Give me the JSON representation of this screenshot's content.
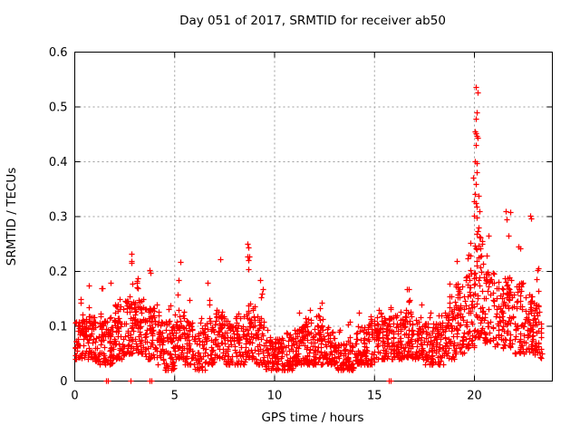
{
  "chart_data": {
    "type": "scatter",
    "title": "Day 051 of 2017, SRMTID for receiver ab50",
    "xlabel": "GPS time / hours",
    "ylabel": "SRMTID / TECUs",
    "xlim": [
      0,
      23.9
    ],
    "ylim": [
      0,
      0.6
    ],
    "xticks": [
      0,
      5,
      10,
      15,
      20
    ],
    "yticks": [
      0,
      0.1,
      0.2,
      0.3,
      0.4,
      0.5,
      0.6
    ],
    "grid": true,
    "legend_position": "none",
    "marker": "plus",
    "marker_color": "#ff0000",
    "grid_color": "#9e9e9e",
    "border_color": "#000000",
    "seed": 2017051,
    "series": [
      {
        "name": "SRMTID",
        "description": "Dense scatter of SRMTID values through the day: baseline band ~0.03-0.13 TECUs with vertical spike streaks, quiet dips near 6.5, 10 and 13.4 h, and a large ionospheric disturbance spike reaching 0.54 TECUs at ~20.1 h.",
        "envelope_segments": [
          [
            0.0,
            0.5,
            55,
            0.04,
            0.12,
            0.17
          ],
          [
            0.5,
            1.0,
            55,
            0.04,
            0.12,
            0.19
          ],
          [
            1.0,
            1.5,
            55,
            0.03,
            0.11,
            0.17
          ],
          [
            1.5,
            2.0,
            55,
            0.03,
            0.12,
            0.18
          ],
          [
            2.0,
            2.5,
            60,
            0.04,
            0.14,
            0.2
          ],
          [
            2.5,
            3.0,
            60,
            0.05,
            0.16,
            0.235
          ],
          [
            3.0,
            3.5,
            60,
            0.05,
            0.15,
            0.2
          ],
          [
            3.5,
            4.0,
            60,
            0.04,
            0.14,
            0.21
          ],
          [
            4.0,
            4.5,
            50,
            0.03,
            0.11,
            0.14
          ],
          [
            4.5,
            5.0,
            55,
            0.02,
            0.11,
            0.16
          ],
          [
            5.0,
            5.5,
            55,
            0.04,
            0.13,
            0.22
          ],
          [
            5.5,
            6.0,
            50,
            0.03,
            0.11,
            0.17
          ],
          [
            6.0,
            6.5,
            45,
            0.02,
            0.09,
            0.12
          ],
          [
            6.5,
            7.0,
            50,
            0.03,
            0.11,
            0.19
          ],
          [
            7.0,
            7.5,
            55,
            0.04,
            0.13,
            0.225
          ],
          [
            7.5,
            8.0,
            50,
            0.03,
            0.11,
            0.16
          ],
          [
            8.0,
            8.5,
            50,
            0.03,
            0.12,
            0.2
          ],
          [
            8.5,
            9.0,
            55,
            0.04,
            0.14,
            0.25
          ],
          [
            9.0,
            9.5,
            50,
            0.03,
            0.12,
            0.19
          ],
          [
            9.5,
            10.0,
            42,
            0.02,
            0.08,
            0.11
          ],
          [
            10.0,
            10.5,
            48,
            0.02,
            0.08,
            0.12
          ],
          [
            10.5,
            11.0,
            50,
            0.02,
            0.09,
            0.12
          ],
          [
            11.0,
            11.5,
            55,
            0.03,
            0.1,
            0.13
          ],
          [
            11.5,
            12.0,
            55,
            0.03,
            0.12,
            0.16
          ],
          [
            12.0,
            12.5,
            55,
            0.03,
            0.12,
            0.16
          ],
          [
            12.5,
            13.0,
            50,
            0.03,
            0.1,
            0.13
          ],
          [
            13.0,
            13.5,
            42,
            0.02,
            0.07,
            0.1
          ],
          [
            13.5,
            14.0,
            48,
            0.02,
            0.08,
            0.11
          ],
          [
            14.0,
            14.5,
            52,
            0.03,
            0.1,
            0.13
          ],
          [
            14.5,
            15.0,
            52,
            0.03,
            0.11,
            0.12
          ],
          [
            15.0,
            15.5,
            55,
            0.04,
            0.12,
            0.13
          ],
          [
            15.5,
            16.0,
            55,
            0.04,
            0.12,
            0.15
          ],
          [
            16.0,
            16.5,
            55,
            0.04,
            0.12,
            0.16
          ],
          [
            16.5,
            17.0,
            55,
            0.04,
            0.13,
            0.17
          ],
          [
            17.0,
            17.5,
            55,
            0.04,
            0.12,
            0.15
          ],
          [
            17.5,
            18.0,
            50,
            0.03,
            0.11,
            0.13
          ],
          [
            18.0,
            18.5,
            50,
            0.03,
            0.11,
            0.14
          ],
          [
            18.5,
            19.0,
            55,
            0.04,
            0.13,
            0.18
          ],
          [
            19.0,
            19.5,
            60,
            0.05,
            0.18,
            0.25
          ],
          [
            19.5,
            20.0,
            62,
            0.06,
            0.2,
            0.27
          ],
          [
            20.0,
            20.45,
            58,
            0.08,
            0.28,
            0.32
          ],
          [
            20.45,
            21.0,
            55,
            0.07,
            0.2,
            0.27
          ],
          [
            21.0,
            21.5,
            50,
            0.06,
            0.17,
            0.24
          ],
          [
            21.5,
            22.0,
            55,
            0.06,
            0.19,
            0.31
          ],
          [
            22.0,
            22.5,
            55,
            0.05,
            0.18,
            0.26
          ],
          [
            22.5,
            23.0,
            55,
            0.05,
            0.16,
            0.3
          ],
          [
            23.0,
            23.4,
            45,
            0.04,
            0.14,
            0.21
          ]
        ],
        "peak_points": [
          [
            20.05,
            0.537
          ],
          [
            20.14,
            0.527
          ],
          [
            20.1,
            0.49
          ],
          [
            20.06,
            0.478
          ],
          [
            20.04,
            0.455
          ],
          [
            20.09,
            0.452
          ],
          [
            20.12,
            0.447
          ],
          [
            20.16,
            0.443
          ],
          [
            20.08,
            0.43
          ],
          [
            20.03,
            0.4
          ],
          [
            20.1,
            0.398
          ],
          [
            20.13,
            0.381
          ],
          [
            19.95,
            0.371
          ],
          [
            20.08,
            0.359
          ],
          [
            20.02,
            0.341
          ],
          [
            20.19,
            0.338
          ],
          [
            19.96,
            0.328
          ],
          [
            20.05,
            0.324
          ],
          [
            20.13,
            0.318
          ],
          [
            19.97,
            0.302
          ],
          [
            20.11,
            0.299
          ],
          [
            21.58,
            0.31
          ],
          [
            21.62,
            0.295
          ],
          [
            22.78,
            0.301
          ],
          [
            22.84,
            0.296
          ],
          [
            8.66,
            0.25
          ],
          [
            8.7,
            0.243
          ],
          [
            2.82,
            0.233
          ],
          [
            7.28,
            0.222
          ],
          [
            5.28,
            0.218
          ],
          [
            23.18,
            0.205
          ]
        ],
        "zero_points": [
          1.55,
          1.66,
          2.81,
          3.74,
          3.85,
          15.72,
          15.8
        ]
      }
    ]
  }
}
